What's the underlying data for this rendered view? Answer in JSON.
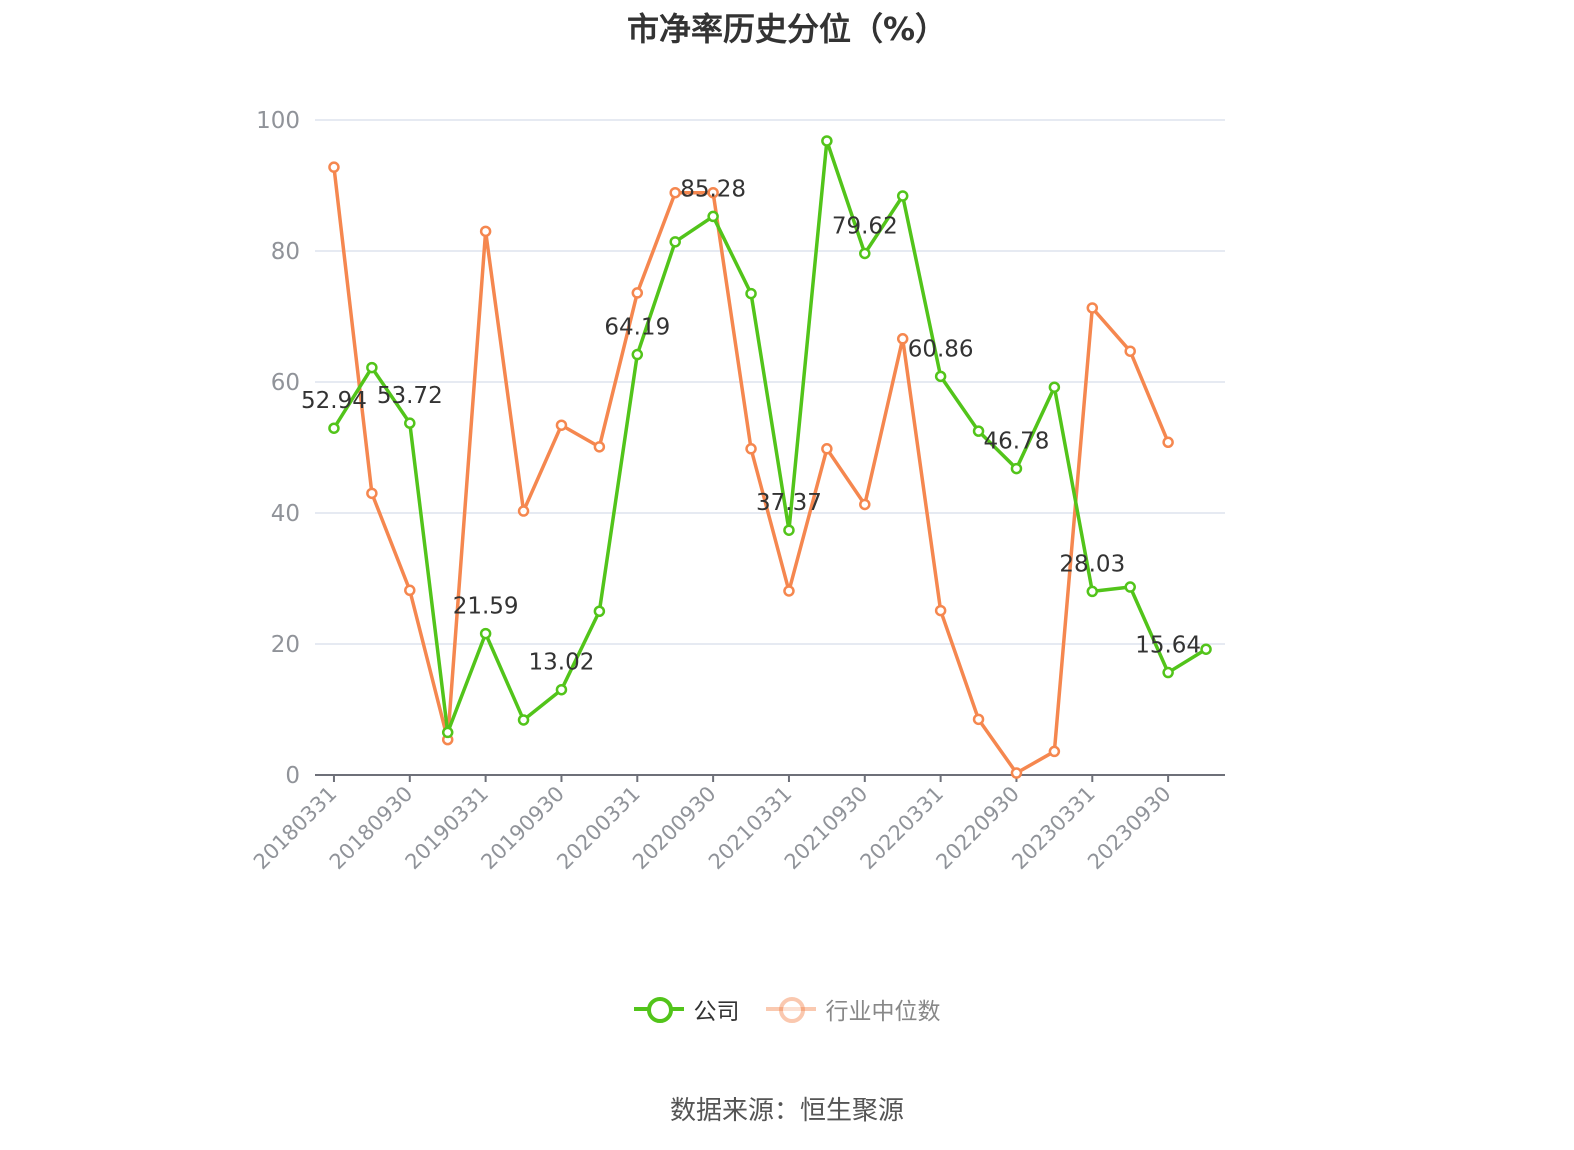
{
  "title": "市净率历史分位（%）",
  "source": "数据来源：恒生聚源",
  "colors": {
    "company": "#52c41a",
    "industry": "#f5874f",
    "grid": "#dde3ee",
    "axis": "#6e7079",
    "label": "#333333",
    "tick": "#909399"
  },
  "legend": [
    {
      "name": "公司",
      "color": "#52c41a",
      "dim": false
    },
    {
      "name": "行业中位数",
      "color": "#f5874f",
      "dim": true
    }
  ],
  "chart_data": {
    "type": "line",
    "title": "市净率历史分位（%）",
    "xlabel": "",
    "ylabel": "",
    "ylim": [
      0,
      100
    ],
    "yticks": [
      0,
      20,
      40,
      60,
      80,
      100
    ],
    "grid": true,
    "legend_position": "bottom",
    "x": [
      "20180331",
      "20180630",
      "20180930",
      "20181231",
      "20190331",
      "20190630",
      "20190930",
      "20191231",
      "20200331",
      "20200630",
      "20200930",
      "20201231",
      "20210331",
      "20210630",
      "20210930",
      "20211231",
      "20220331",
      "20220630",
      "20220930",
      "20221231",
      "20230331",
      "20230630",
      "20230930",
      "20231231"
    ],
    "xtick_labels": [
      "20180331",
      "20180930",
      "20190331",
      "20190930",
      "20200331",
      "20200930",
      "20210331",
      "20210930",
      "20220331",
      "20220930",
      "20230331",
      "20230930"
    ],
    "series": [
      {
        "name": "公司",
        "color": "#52c41a",
        "values": [
          52.94,
          62.2,
          53.72,
          6.5,
          21.59,
          8.4,
          13.02,
          25.0,
          64.19,
          81.4,
          85.28,
          73.5,
          37.37,
          96.8,
          79.62,
          88.4,
          60.86,
          52.5,
          46.78,
          59.2,
          28.03,
          28.7,
          15.64,
          19.2
        ],
        "labels": [
          "52.94",
          "",
          "53.72",
          "",
          "21.59",
          "",
          "13.02",
          "",
          "64.19",
          "",
          "85.28",
          "",
          "37.37",
          "",
          "79.62",
          "",
          "60.86",
          "",
          "46.78",
          "",
          "28.03",
          "",
          "15.64",
          ""
        ]
      },
      {
        "name": "行业中位数",
        "color": "#f5874f",
        "values": [
          92.8,
          43.0,
          28.2,
          5.4,
          83.0,
          40.3,
          53.4,
          50.1,
          73.6,
          88.9,
          88.9,
          49.8,
          28.1,
          49.8,
          41.3,
          66.6,
          25.1,
          8.5,
          0.3,
          3.6,
          71.3,
          64.7,
          50.8,
          null
        ]
      }
    ]
  }
}
